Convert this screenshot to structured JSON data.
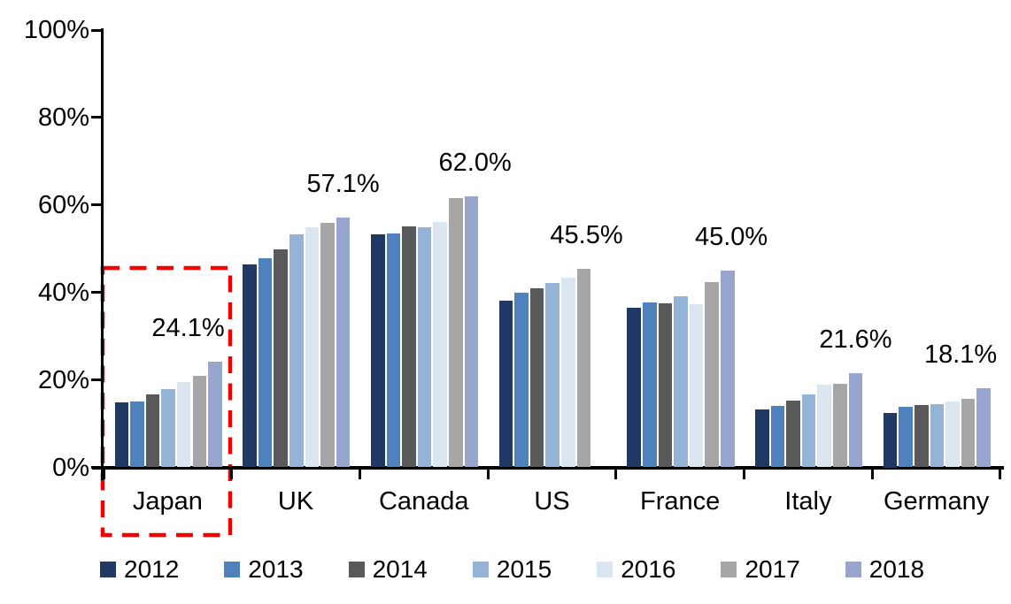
{
  "chart_data": {
    "type": "bar",
    "title": "",
    "xlabel": "",
    "ylabel": "",
    "ylim": [
      0,
      100
    ],
    "grid": false,
    "legend_position": "bottom",
    "y_tick_values": [
      0,
      20,
      40,
      60,
      80,
      100
    ],
    "y_tick_labels": [
      "0%",
      "20%",
      "40%",
      "60%",
      "80%",
      "100%"
    ],
    "categories": [
      "Japan",
      "UK",
      "Canada",
      "US",
      "France",
      "Italy",
      "Germany"
    ],
    "series": [
      {
        "name": "2012",
        "color": "#1F3864",
        "values": [
          14.8,
          46.4,
          53.2,
          38.2,
          36.5,
          13.2,
          12.5
        ]
      },
      {
        "name": "2013",
        "color": "#4F81BD",
        "values": [
          15.0,
          47.9,
          53.5,
          39.9,
          37.7,
          14.0,
          13.9
        ]
      },
      {
        "name": "2014",
        "color": "#595959",
        "values": [
          16.6,
          49.9,
          55.2,
          40.9,
          37.6,
          15.2,
          14.2
        ]
      },
      {
        "name": "2015",
        "color": "#95B3D7",
        "values": [
          17.9,
          53.3,
          55.0,
          42.1,
          39.2,
          16.7,
          14.5
        ]
      },
      {
        "name": "2016",
        "color": "#DCE6F1",
        "values": [
          19.6,
          54.9,
          56.2,
          43.4,
          37.3,
          19.0,
          15.1
        ]
      },
      {
        "name": "2017",
        "color": "#A6A6A6",
        "values": [
          21.0,
          55.9,
          61.6,
          45.5,
          42.3,
          19.2,
          15.6
        ]
      },
      {
        "name": "2018",
        "color": "#98A6CF",
        "values": [
          24.1,
          57.1,
          62.0,
          null,
          45.0,
          21.6,
          18.1
        ]
      }
    ],
    "data_labels": [
      {
        "category": "Japan",
        "text": "24.1%",
        "x_pct": 0.66
      },
      {
        "category": "UK",
        "text": "57.1%",
        "x_pct": 0.87
      },
      {
        "category": "Canada",
        "text": "62.0%",
        "x_pct": 0.9
      },
      {
        "category": "US",
        "text": "45.5%",
        "x_pct": 0.77
      },
      {
        "category": "France",
        "text": "45.0%",
        "x_pct": 0.9
      },
      {
        "category": "Italy",
        "text": "21.6%",
        "x_pct": 0.87
      },
      {
        "category": "Germany",
        "text": "18.1%",
        "x_pct": 0.69
      }
    ],
    "highlight": {
      "category": "Japan",
      "style": "dashed-rectangle",
      "color": "#F50000"
    },
    "axis_color": "#000000"
  }
}
